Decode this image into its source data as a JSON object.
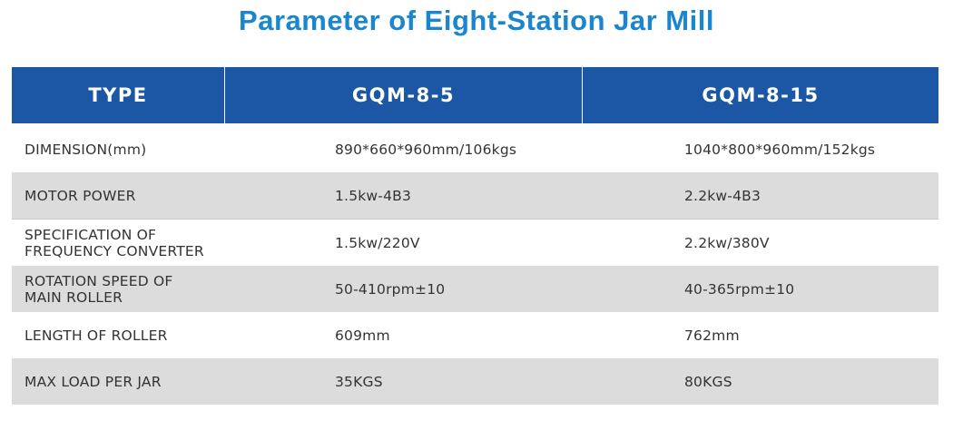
{
  "title": "Parameter of Eight-Station Jar Mill",
  "table": {
    "headers": [
      "TYPE",
      "GQM-8-5",
      "GQM-8-15"
    ],
    "rows": [
      {
        "label": [
          "DIMENSION(mm)"
        ],
        "gqm_8_5": "890*660*960mm/106kgs",
        "gqm_8_15": "1040*800*960mm/152kgs"
      },
      {
        "label": [
          "MOTOR POWER"
        ],
        "gqm_8_5": "1.5kw-4B3",
        "gqm_8_15": "2.2kw-4B3"
      },
      {
        "label": [
          "SPECIFICATION OF",
          "FREQUENCY CONVERTER"
        ],
        "gqm_8_5": "1.5kw/220V",
        "gqm_8_15": "2.2kw/380V"
      },
      {
        "label": [
          "ROTATION SPEED OF",
          "MAIN ROLLER"
        ],
        "gqm_8_5": "50-410rpm±10",
        "gqm_8_15": "40-365rpm±10"
      },
      {
        "label": [
          "LENGTH OF ROLLER"
        ],
        "gqm_8_5": "609mm",
        "gqm_8_15": "762mm"
      },
      {
        "label": [
          "MAX LOAD PER JAR"
        ],
        "gqm_8_5": "35KGS",
        "gqm_8_15": "80KGS"
      }
    ]
  },
  "colors": {
    "title": "#1a86cf",
    "header_bg": "#1b57a4",
    "stripe": "#dcdcdc"
  }
}
